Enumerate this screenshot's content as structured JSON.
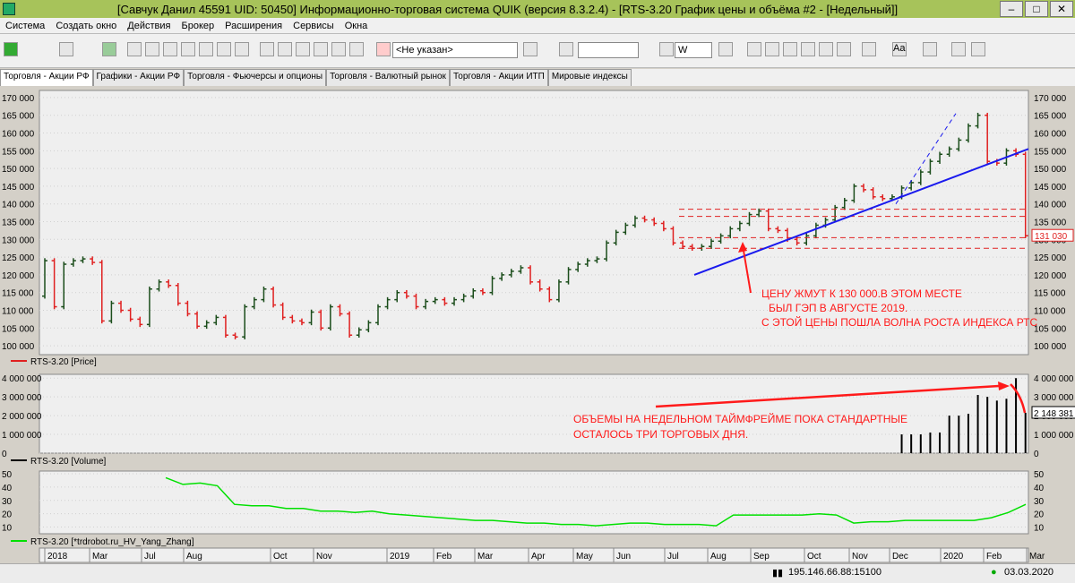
{
  "window": {
    "title": "[Савчук Данил 45591 UID: 50450] Информационно-торговая система QUIK (версия 8.3.2.4) - [RTS-3.20 График цены и объёма #2 - [Недельный]]",
    "min_label": "–",
    "max_label": "□",
    "close_label": "✕"
  },
  "menu": [
    "Система",
    "Создать окно",
    "Действия",
    "Брокер",
    "Расширения",
    "Сервисы",
    "Окна"
  ],
  "toolbar": {
    "account_value": "<Не указан>",
    "interval_value": "W",
    "font_label": "Aa"
  },
  "tabs": [
    {
      "label": "Торговля - Акции РФ",
      "active": true
    },
    {
      "label": "Графики - Акции РФ",
      "active": false
    },
    {
      "label": "Торговля - Фьючерсы и опционы",
      "active": false
    },
    {
      "label": "Торговля - Валютный рынок",
      "active": false
    },
    {
      "label": "Торговля - Акции ИТП",
      "active": false
    },
    {
      "label": "Мировые индексы",
      "active": false
    }
  ],
  "colors": {
    "up": "#1b4d1b",
    "down": "#e02020",
    "volume": "#000000",
    "hv": "#00e000",
    "trend": "#1a1aee",
    "annotation": "#ff1a1a"
  },
  "legend": {
    "price": "RTS-3.20 [Price]",
    "volume": "RTS-3.20 [Volume]",
    "hv": "RTS-3.20 [*trdrobot.ru_HV_Yang_Zhang]"
  },
  "price_label": "131 030",
  "volume_label": "2 148 381",
  "annotation1": {
    "lines": [
      "ЦЕНУ ЖМУТ К 130 000.В ЭТОМ МЕСТЕ",
      "БЫЛ ГЭП В АВГУСТЕ 2019.",
      "С ЭТОЙ ЦЕНЫ ПОШЛА ВОЛНА РОСТА ИНДЕКСА РТС"
    ]
  },
  "annotation2": {
    "lines": [
      "ОБЪЕМЫ НА НЕДЕЛЬНОМ ТАЙМФРЕЙМЕ ПОКА СТАНДАРТНЫЕ",
      "ОСТАЛОСЬ ТРИ ТОРГОВЫХ ДНЯ."
    ]
  },
  "status": {
    "server": "195.146.66.88:15100",
    "date": "03.03.2020"
  },
  "chart_data": {
    "type": "bar",
    "timeframe": "weekly",
    "x_labels": [
      "2018",
      "Mar",
      "Jul",
      "Aug",
      "Oct",
      "Nov",
      "2019",
      "Feb",
      "Mar",
      "Apr",
      "May",
      "Jun",
      "Jul",
      "Aug",
      "Sep",
      "Oct",
      "Nov",
      "Dec",
      "2020",
      "Feb",
      "Mar"
    ],
    "price": {
      "ylim": [
        97500,
        172000
      ],
      "yticks": [
        "100 000",
        "105 000",
        "110 000",
        "115 000",
        "120 000",
        "125 000",
        "130 000",
        "135 000",
        "140 000",
        "145 000",
        "150 000",
        "155 000",
        "160 000",
        "165 000",
        "170 000"
      ],
      "close": [
        124000,
        111000,
        123000,
        124000,
        124500,
        123500,
        107000,
        112000,
        110000,
        107500,
        106000,
        116000,
        118000,
        117000,
        112000,
        109000,
        105500,
        106500,
        108000,
        103000,
        102500,
        111000,
        113000,
        116000,
        111500,
        108000,
        107000,
        106500,
        109500,
        105000,
        111000,
        109000,
        103000,
        104500,
        106500,
        111000,
        113000,
        115000,
        114000,
        111000,
        112500,
        113000,
        112000,
        113000,
        114000,
        115500,
        115000,
        119000,
        120000,
        121000,
        122000,
        118000,
        116000,
        113000,
        118000,
        121500,
        123000,
        124000,
        124500,
        129000,
        132000,
        134000,
        136000,
        135500,
        134500,
        133000,
        129000,
        128000,
        127500,
        128000,
        129500,
        131000,
        133000,
        134500,
        137000,
        138000,
        133000,
        132500,
        130000,
        129000,
        131000,
        134000,
        135500,
        139000,
        141000,
        145000,
        144000,
        142000,
        141500,
        142000,
        144500,
        146000,
        149000,
        152000,
        154000,
        155500,
        158000,
        162000,
        165000,
        152000,
        151500,
        155000,
        154000,
        131030
      ],
      "trendline": {
        "from_price": 120000,
        "to_price": 155500
      },
      "support_zone": {
        "upper": 130500,
        "lower": 127500
      }
    },
    "volume": {
      "ylim": [
        0,
        4200000
      ],
      "yticks": [
        "0",
        "1 000 000",
        "2 000 000",
        "3 000 000",
        "4 000 000"
      ],
      "values": [
        1000000,
        1000000,
        1000000,
        1100000,
        1100000,
        2000000,
        2000000,
        2100000,
        3100000,
        3000000,
        2800000,
        2900000,
        4000000,
        2148381
      ]
    },
    "hv": {
      "ylim": [
        5,
        52
      ],
      "yticks": [
        "10",
        "20",
        "30",
        "40",
        "50"
      ],
      "values": [
        47,
        42,
        43,
        41,
        27,
        26,
        26,
        24,
        24,
        22,
        22,
        21,
        22,
        20,
        19,
        18,
        17,
        16,
        15,
        15,
        14,
        13,
        13,
        12,
        12,
        11,
        12,
        13,
        13,
        12,
        12,
        12,
        11,
        19,
        19,
        19,
        19,
        19,
        20,
        19,
        13,
        14,
        14,
        15,
        15,
        15,
        15,
        15,
        17,
        21,
        27
      ]
    }
  }
}
